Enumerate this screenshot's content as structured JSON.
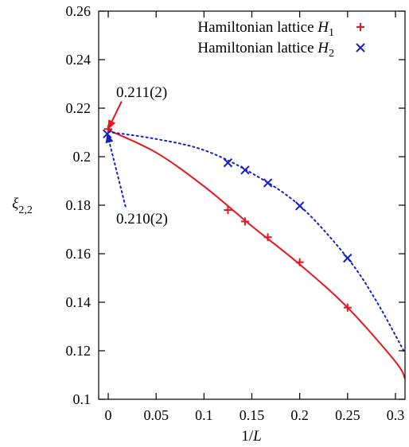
{
  "chart_data": {
    "type": "scatter",
    "title": "",
    "xlabel": "1/",
    "xlabel_italic": "L",
    "ylabel": "ξ",
    "ylabel_sub": "2,2",
    "xlim": [
      -0.01,
      0.31
    ],
    "ylim": [
      0.1,
      0.26
    ],
    "xticks": [
      0,
      0.05,
      0.1,
      0.15,
      0.2,
      0.25,
      0.3
    ],
    "xtick_labels": [
      "0",
      "0.05",
      "0.1",
      "0.15",
      "0.2",
      "0.25",
      "0.3"
    ],
    "yticks": [
      0.1,
      0.12,
      0.14,
      0.16,
      0.18,
      0.2,
      0.22,
      0.24,
      0.26
    ],
    "ytick_labels": [
      "0.1",
      "0.12",
      "0.14",
      "0.16",
      "0.18",
      "0.2",
      "0.22",
      "0.24",
      "0.26"
    ],
    "grid": false,
    "legend_position": "top-right",
    "series": [
      {
        "name": "Hamiltonian lattice ",
        "name_italic": "H",
        "name_sub": "1",
        "marker": "plus",
        "color": "#e8141c",
        "points": [
          [
            0.125,
            0.178
          ],
          [
            0.1429,
            0.1733
          ],
          [
            0.1667,
            0.1668
          ],
          [
            0.2,
            0.1565
          ],
          [
            0.25,
            0.1378
          ]
        ],
        "fit": [
          [
            0,
            0.211
          ],
          [
            0.05,
            0.2017
          ],
          [
            0.1,
            0.1878
          ],
          [
            0.15,
            0.1714
          ],
          [
            0.2,
            0.1556
          ],
          [
            0.25,
            0.1378
          ],
          [
            0.3,
            0.1155
          ],
          [
            0.31,
            0.1085
          ]
        ],
        "fit_style": "solid"
      },
      {
        "name": "Hamiltonian lattice ",
        "name_italic": "H",
        "name_sub": "2",
        "marker": "cross",
        "color": "#1420c8",
        "points": [
          [
            0.125,
            0.1975
          ],
          [
            0.1429,
            0.1945
          ],
          [
            0.1667,
            0.1892
          ],
          [
            0.2,
            0.1797
          ],
          [
            0.25,
            0.1582
          ]
        ],
        "fit": [
          [
            0,
            0.2102
          ],
          [
            0.05,
            0.2073
          ],
          [
            0.1,
            0.2027
          ],
          [
            0.15,
            0.1932
          ],
          [
            0.2,
            0.1798
          ],
          [
            0.25,
            0.1582
          ],
          [
            0.28,
            0.1405
          ],
          [
            0.31,
            0.119
          ]
        ],
        "fit_style": "dotted"
      }
    ],
    "annotations": [
      {
        "text": "0.211(2)",
        "text_x": 0.0,
        "text_y": 0.2265,
        "arrow_from": [
          0.014,
          0.2228
        ],
        "arrow_to": [
          0.0,
          0.2114
        ],
        "color": "#e8141c",
        "style": "solid"
      },
      {
        "text": "0.210(2)",
        "text_x": 0.0,
        "text_y": 0.1745,
        "arrow_from": [
          0.018,
          0.1795
        ],
        "arrow_to": [
          -0.001,
          0.2094
        ],
        "color": "#1420c8",
        "style": "dotted"
      }
    ]
  }
}
